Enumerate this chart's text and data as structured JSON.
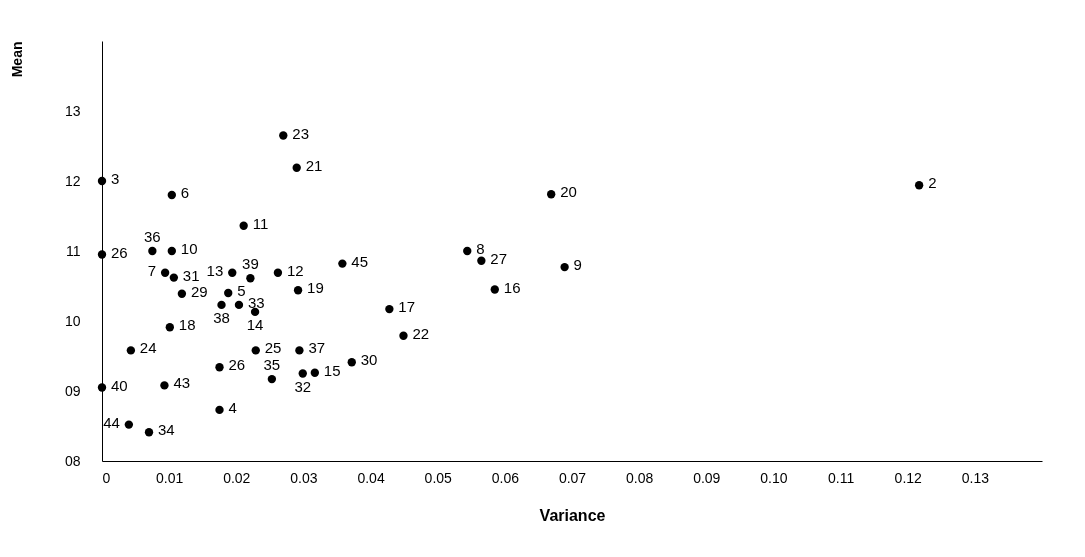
{
  "chart_data": {
    "type": "scatter",
    "xlabel": "Variance",
    "ylabel": "Mean",
    "xlim": [
      0,
      0.14
    ],
    "ylim": [
      8,
      14
    ],
    "xticks": [
      0,
      0.01,
      0.02,
      0.03,
      0.04,
      0.05,
      0.06,
      0.07,
      0.08,
      0.09,
      {
        "value": 0.1,
        "label": "0.10"
      },
      0.11,
      0.12,
      0.13
    ],
    "yticks": [
      {
        "value": 8,
        "label": "08"
      },
      {
        "value": 9,
        "label": "09"
      },
      10,
      11,
      12,
      13
    ],
    "grid": false,
    "marker": "circle",
    "series": [
      {
        "color": "#000000",
        "x": [
          0,
          0,
          0,
          0.027,
          0.029,
          0.0104,
          0.0075,
          0.0104,
          0.0211,
          0.0194,
          0.0094,
          0.0107,
          0.0221,
          0.0262,
          0.0358,
          0.0119,
          0.0188,
          0.0178,
          0.0204,
          0.0228,
          0.0292,
          0.0101,
          0.0043,
          0.0175,
          0.0229,
          0.0294,
          0.0253,
          0.0299,
          0.0317,
          0.0372,
          0.0093,
          0.0175,
          0.004,
          0.007,
          0.0428,
          0.0449,
          0.0544,
          0.0565,
          0.0585,
          0.0669,
          0.0689,
          0.1217
        ],
        "values": [
          12.0,
          10.95,
          9.05,
          12.65,
          12.19,
          11.8,
          11.0,
          11.0,
          11.36,
          10.69,
          10.69,
          10.62,
          10.61,
          10.69,
          10.82,
          10.39,
          10.4,
          10.23,
          10.23,
          10.13,
          10.44,
          9.91,
          9.58,
          9.34,
          9.58,
          9.58,
          9.17,
          9.25,
          9.26,
          9.41,
          9.08,
          8.73,
          8.52,
          8.41,
          10.17,
          9.79,
          11.0,
          10.86,
          10.45,
          11.81,
          10.77,
          11.94
        ]
      }
    ],
    "annotations": [
      {
        "text": "3",
        "x": 0,
        "y": 12.0
      },
      {
        "text": "26",
        "x": 0,
        "y": 10.95
      },
      {
        "text": "40",
        "x": 0,
        "y": 9.05
      },
      {
        "text": "23",
        "x": 0.027,
        "y": 12.65
      },
      {
        "text": "21",
        "x": 0.029,
        "y": 12.19
      },
      {
        "text": "6",
        "x": 0.0104,
        "y": 11.8
      },
      {
        "text": "36",
        "x": 0.0075,
        "y": 11.0
      },
      {
        "text": "10",
        "x": 0.0104,
        "y": 11.0
      },
      {
        "text": "11",
        "x": 0.0211,
        "y": 11.36
      },
      {
        "text": "13",
        "x": 0.0194,
        "y": 10.69
      },
      {
        "text": "7",
        "x": 0.0094,
        "y": 10.69
      },
      {
        "text": "31",
        "x": 0.0107,
        "y": 10.62
      },
      {
        "text": "39",
        "x": 0.0221,
        "y": 10.61
      },
      {
        "text": "12",
        "x": 0.0262,
        "y": 10.69
      },
      {
        "text": "45",
        "x": 0.0358,
        "y": 10.82
      },
      {
        "text": "29",
        "x": 0.0119,
        "y": 10.39
      },
      {
        "text": "5",
        "x": 0.0188,
        "y": 10.4
      },
      {
        "text": "38",
        "x": 0.0178,
        "y": 10.23
      },
      {
        "text": "33",
        "x": 0.0204,
        "y": 10.23
      },
      {
        "text": "14",
        "x": 0.0228,
        "y": 10.13
      },
      {
        "text": "19",
        "x": 0.0292,
        "y": 10.44
      },
      {
        "text": "18",
        "x": 0.0101,
        "y": 9.91
      },
      {
        "text": "24",
        "x": 0.0043,
        "y": 9.58
      },
      {
        "text": "26",
        "x": 0.0175,
        "y": 9.34
      },
      {
        "text": "25",
        "x": 0.0229,
        "y": 9.58
      },
      {
        "text": "37",
        "x": 0.0294,
        "y": 9.58
      },
      {
        "text": "35",
        "x": 0.0253,
        "y": 9.17
      },
      {
        "text": "32",
        "x": 0.0299,
        "y": 9.25
      },
      {
        "text": "15",
        "x": 0.0317,
        "y": 9.26
      },
      {
        "text": "30",
        "x": 0.0372,
        "y": 9.41
      },
      {
        "text": "43",
        "x": 0.0093,
        "y": 9.08
      },
      {
        "text": "4",
        "x": 0.0175,
        "y": 8.73
      },
      {
        "text": "44",
        "x": 0.004,
        "y": 8.52
      },
      {
        "text": "34",
        "x": 0.007,
        "y": 8.41
      },
      {
        "text": "17",
        "x": 0.0428,
        "y": 10.17
      },
      {
        "text": "22",
        "x": 0.0449,
        "y": 9.79
      },
      {
        "text": "8",
        "x": 0.0544,
        "y": 11.0
      },
      {
        "text": "27",
        "x": 0.0565,
        "y": 10.86
      },
      {
        "text": "16",
        "x": 0.0585,
        "y": 10.45
      },
      {
        "text": "20",
        "x": 0.0669,
        "y": 11.81
      },
      {
        "text": "9",
        "x": 0.0689,
        "y": 10.77
      },
      {
        "text": "2",
        "x": 0.1217,
        "y": 11.94
      }
    ]
  }
}
